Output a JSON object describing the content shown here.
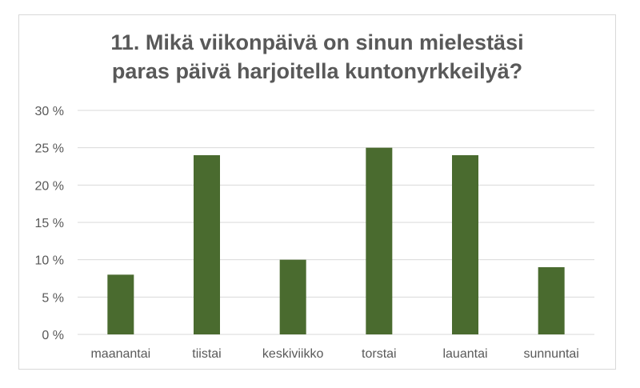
{
  "chart_data": {
    "type": "bar",
    "title_lines": [
      "11. Mikä viikonpäivä on sinun mielestäsi",
      "paras päivä harjoitella kuntonyrkkeilyä?"
    ],
    "categories": [
      "maanantai",
      "tiistai",
      "keskiviikko",
      "torstai",
      "lauantai",
      "sunnuntai"
    ],
    "values": [
      8,
      24,
      10,
      25,
      24,
      9
    ],
    "value_unit": "%",
    "ylim": [
      0,
      30
    ],
    "yticks": [
      0,
      5,
      10,
      15,
      20,
      25,
      30
    ],
    "ytick_labels": [
      "0 %",
      "5 %",
      "10 %",
      "15 %",
      "20 %",
      "25 %",
      "30 %"
    ],
    "grid": true,
    "legend": "none",
    "bar_color": "#4a6b2f",
    "grid_color": "#d9d9d9",
    "text_color": "#595959"
  }
}
